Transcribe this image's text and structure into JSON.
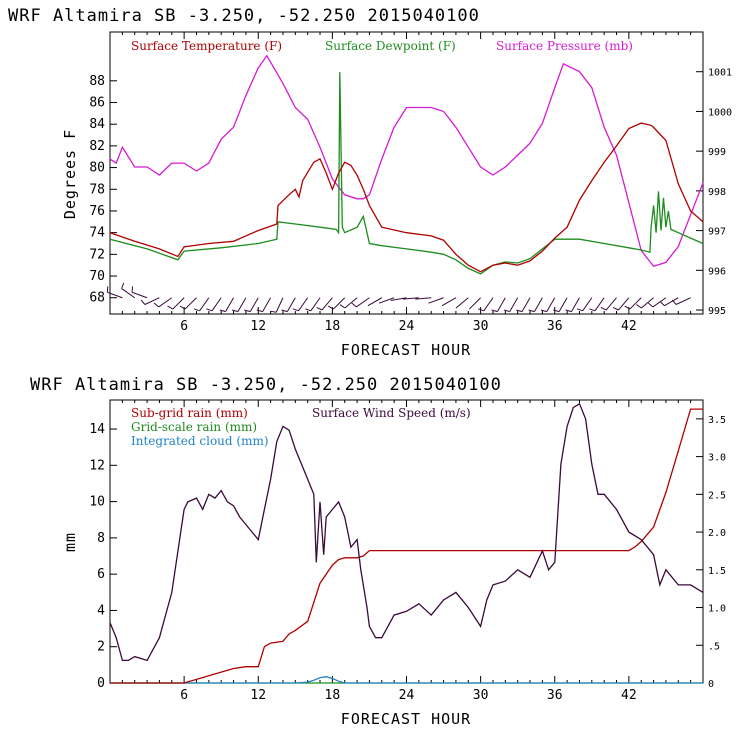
{
  "titles": {
    "top": "WRF  Altamira  SB  -3.250, -52.250  2015040100",
    "bottom": "WRF  Altamira  SB  -3.250, -52.250  2015040100"
  },
  "colors": {
    "temperature": "#b00000",
    "dewpoint": "#1e8c1e",
    "pressure": "#d61ad6",
    "subgrid_rain": "#b00000",
    "gridscale_rain": "#1e8c1e",
    "cloud": "#1f84c8",
    "wind_speed": "#3a0a3a",
    "wind_barb": "#3a0a3a"
  },
  "chart_data": [
    {
      "type": "line",
      "title": "WRF  Altamira  SB  -3.250, -52.250  2015040100",
      "xlabel": "FORECAST HOUR",
      "ylabel": "Degrees F",
      "y2label": "",
      "xlim": [
        0,
        48
      ],
      "ylim": [
        66.5,
        92.5
      ],
      "y2lim": [
        994.9,
        1002
      ],
      "x_ticks": [
        6,
        12,
        18,
        24,
        30,
        36,
        42
      ],
      "y_ticks": [
        68,
        70,
        72,
        74,
        76,
        78,
        80,
        82,
        84,
        86,
        88
      ],
      "y2_ticks": [
        995,
        996,
        997,
        998,
        999,
        1000,
        1001
      ],
      "grid": false,
      "legend": [
        "Surface Temperature (F)",
        "Surface Dewpoint (F)",
        "Surface Pressure (mb)"
      ],
      "series": [
        {
          "name": "Surface Temperature (F)",
          "axis": "left",
          "x": [
            0,
            2,
            4,
            5.5,
            6,
            8,
            10,
            12,
            13.5,
            13.6,
            14.5,
            15,
            15.3,
            15.6,
            16.5,
            17,
            17.5,
            18,
            18.5,
            19,
            19.5,
            20,
            20.5,
            21,
            22,
            24,
            26,
            27,
            28,
            29,
            30,
            31,
            32,
            33,
            34,
            35,
            36,
            37,
            38,
            39,
            40,
            41,
            42,
            43,
            43.8,
            44,
            45,
            46,
            47,
            48
          ],
          "y": [
            74,
            73.2,
            72.5,
            71.8,
            72.7,
            73,
            73.2,
            74.2,
            74.8,
            76.5,
            77.5,
            78,
            77.3,
            78.8,
            80.5,
            80.8,
            79.5,
            78,
            79.5,
            80.5,
            80.2,
            79.3,
            78,
            76.5,
            74.5,
            74,
            73.7,
            73.3,
            72,
            71,
            70.4,
            71,
            71.2,
            71,
            71.4,
            72.3,
            73.5,
            74.5,
            77,
            78.8,
            80.5,
            82,
            83.6,
            84.1,
            83.9,
            83.7,
            82.5,
            78.5,
            76,
            75
          ]
        },
        {
          "name": "Surface Dewpoint (F)",
          "axis": "left",
          "x": [
            0,
            3,
            5.5,
            6,
            9,
            12,
            13.5,
            13.6,
            15,
            17,
            18.3,
            18.5,
            18.6,
            18.8,
            19,
            20,
            20.5,
            20.8,
            21,
            22,
            24,
            26,
            27,
            28,
            29,
            30,
            31,
            32,
            33,
            34,
            36,
            38,
            40,
            42,
            43,
            43.7,
            43.8,
            44,
            44.2,
            44.4,
            44.6,
            44.8,
            45,
            45.2,
            45.4,
            46,
            47,
            48
          ],
          "y": [
            73.4,
            72.5,
            71.5,
            72.3,
            72.6,
            73,
            73.4,
            75,
            74.8,
            74.5,
            74.3,
            74,
            88.8,
            74.5,
            74,
            74.5,
            75.5,
            74,
            73,
            72.8,
            72.5,
            72.2,
            72,
            71.5,
            70.7,
            70.2,
            71,
            71.3,
            71.2,
            71.6,
            73.4,
            73.4,
            73.0,
            72.6,
            72.4,
            72.2,
            74.5,
            76.5,
            74,
            77.8,
            74.2,
            77.2,
            74.5,
            76,
            74.3,
            74,
            73.5,
            73
          ]
        },
        {
          "name": "Surface Pressure (mb)",
          "axis": "right",
          "x": [
            0,
            0.5,
            1,
            2,
            3,
            4,
            5,
            6,
            7,
            8,
            9,
            10,
            11,
            12,
            12.7,
            14,
            15,
            16,
            17,
            18,
            19,
            20,
            20.5,
            21,
            22,
            23,
            24,
            25,
            26,
            27,
            28,
            29,
            30,
            31,
            32,
            33,
            34,
            35,
            36,
            36.7,
            38,
            39,
            40,
            41,
            42,
            43,
            44,
            45,
            46,
            47,
            48
          ],
          "y": [
            998.8,
            998.7,
            999.1,
            998.6,
            998.6,
            998.4,
            998.7,
            998.7,
            998.5,
            998.7,
            999.3,
            999.6,
            1000.4,
            1001.1,
            1001.4,
            1000.7,
            1000.1,
            999.8,
            999.1,
            998.3,
            997.9,
            997.8,
            997.8,
            997.9,
            998.8,
            999.6,
            1000.1,
            1000.1,
            1000.1,
            1000.0,
            999.6,
            999.1,
            998.6,
            998.4,
            998.6,
            998.9,
            999.2,
            999.7,
            1000.6,
            1001.2,
            1001.0,
            1000.6,
            999.6,
            998.9,
            997.7,
            996.5,
            996.1,
            996.2,
            996.6,
            997.4,
            998.2
          ]
        }
      ],
      "wind_barbs": {
        "name": "Wind barbs",
        "level": 68,
        "x": [
          1,
          2,
          3,
          4,
          5,
          6,
          7,
          8,
          9,
          10,
          11,
          12,
          13,
          14,
          15,
          16,
          17,
          18,
          19,
          20,
          21,
          22,
          23,
          24,
          25,
          26,
          27,
          28,
          29,
          30,
          31,
          32,
          33,
          34,
          35,
          36,
          37,
          38,
          39,
          40,
          41,
          42,
          43,
          44,
          45,
          46,
          47
        ],
        "direction_deg": [
          290,
          305,
          290,
          245,
          235,
          225,
          225,
          215,
          215,
          210,
          210,
          210,
          210,
          205,
          210,
          215,
          215,
          220,
          225,
          230,
          235,
          240,
          250,
          260,
          265,
          265,
          250,
          240,
          230,
          225,
          215,
          210,
          210,
          210,
          210,
          210,
          210,
          210,
          215,
          215,
          220,
          220,
          225,
          230,
          235,
          240,
          245
        ],
        "speed": [
          1,
          1,
          1,
          1,
          1,
          1,
          1,
          1,
          1,
          1,
          1,
          1,
          1,
          1,
          1,
          1,
          1,
          1,
          1,
          1,
          1,
          0,
          0,
          0,
          0,
          0,
          0,
          0,
          0,
          0,
          1,
          1,
          1,
          1,
          1,
          1,
          1,
          1,
          1,
          1,
          1,
          1,
          1,
          1,
          1,
          1,
          1
        ]
      }
    },
    {
      "type": "line",
      "title": "WRF  Altamira  SB  -3.250, -52.250  2015040100",
      "xlabel": "FORECAST HOUR",
      "ylabel": "mm",
      "xlim": [
        0,
        48
      ],
      "ylim": [
        0,
        15.6
      ],
      "y2lim": [
        0,
        3.75
      ],
      "x_ticks": [
        6,
        12,
        18,
        24,
        30,
        36,
        42
      ],
      "y_ticks": [
        0,
        2,
        4,
        6,
        8,
        10,
        12,
        14
      ],
      "y2_ticks": [
        0,
        0.5,
        1.0,
        1.5,
        2.0,
        2.5,
        3.0,
        3.5
      ],
      "y2_tick_labels": [
        "0",
        ".5",
        "1.0",
        "1.5",
        "2.0",
        "2.5",
        "3.0",
        "3.5"
      ],
      "grid": false,
      "legend": [
        "Sub-grid rain (mm)",
        "Surface Wind Speed (m/s)",
        "Grid-scale rain (mm)",
        "Integrated cloud (mm)"
      ],
      "series": [
        {
          "name": "Sub-grid rain (mm)",
          "axis": "left",
          "x": [
            0,
            6,
            7,
            8,
            9,
            10,
            11,
            12,
            12.5,
            13,
            14,
            14.5,
            15,
            16,
            17,
            18,
            18.5,
            19,
            19.5,
            20,
            20.5,
            21,
            24,
            30,
            36,
            42,
            42.5,
            43,
            44,
            45,
            46,
            47,
            48
          ],
          "y": [
            0,
            0,
            0.2,
            0.4,
            0.6,
            0.8,
            0.9,
            0.9,
            2,
            2.2,
            2.3,
            2.7,
            2.9,
            3.4,
            5.5,
            6.5,
            6.8,
            6.9,
            6.9,
            6.9,
            7.0,
            7.3,
            7.3,
            7.3,
            7.3,
            7.3,
            7.5,
            7.8,
            8.6,
            10.5,
            12.8,
            15.1,
            15.1
          ]
        },
        {
          "name": "Grid-scale rain (mm)",
          "axis": "left",
          "x": [
            0,
            48
          ],
          "y": [
            0,
            0
          ]
        },
        {
          "name": "Integrated cloud (mm)",
          "axis": "left",
          "x": [
            0,
            15,
            16,
            16.5,
            17,
            17.5,
            18,
            18.5,
            19,
            20,
            48
          ],
          "y": [
            0,
            0,
            0.05,
            0.15,
            0.3,
            0.35,
            0.25,
            0.1,
            0,
            0,
            0
          ]
        },
        {
          "name": "Surface Wind Speed (m/s)",
          "axis": "right",
          "x": [
            0,
            0.5,
            1,
            1.5,
            2,
            3,
            4,
            5,
            6,
            6.3,
            7,
            7.5,
            8,
            8.5,
            9,
            9.5,
            10,
            10.5,
            11,
            11.5,
            12,
            12.5,
            13,
            13.5,
            14,
            14.5,
            15,
            15.5,
            16,
            16.5,
            16.7,
            17,
            17.3,
            17.5,
            18,
            18.5,
            19,
            19.5,
            20,
            20.3,
            20.8,
            21,
            21.5,
            22,
            23,
            24,
            25,
            26,
            27,
            28,
            29,
            30,
            30.5,
            31,
            32,
            33,
            34,
            35,
            35.5,
            36,
            36.5,
            37,
            37.5,
            38,
            38.5,
            39,
            39.5,
            40,
            41,
            42,
            43,
            44,
            44.5,
            45,
            46,
            47,
            48
          ],
          "y": [
            0.8,
            0.6,
            0.3,
            0.3,
            0.35,
            0.3,
            0.6,
            1.2,
            2.3,
            2.4,
            2.45,
            2.3,
            2.5,
            2.45,
            2.55,
            2.4,
            2.35,
            2.2,
            2.1,
            2.0,
            1.9,
            2.3,
            2.7,
            3.2,
            3.4,
            3.35,
            3.1,
            2.9,
            2.7,
            2.5,
            1.6,
            2.4,
            1.7,
            2.2,
            2.3,
            2.4,
            2.2,
            1.8,
            1.9,
            1.5,
            1.0,
            0.75,
            0.6,
            0.6,
            0.9,
            0.95,
            1.05,
            0.9,
            1.1,
            1.2,
            1.0,
            0.75,
            1.1,
            1.3,
            1.35,
            1.5,
            1.4,
            1.75,
            1.5,
            1.6,
            2.9,
            3.4,
            3.65,
            3.7,
            3.5,
            2.9,
            2.5,
            2.5,
            2.3,
            2.0,
            1.9,
            1.7,
            1.3,
            1.5,
            1.3,
            1.3,
            1.2
          ]
        }
      ]
    }
  ]
}
